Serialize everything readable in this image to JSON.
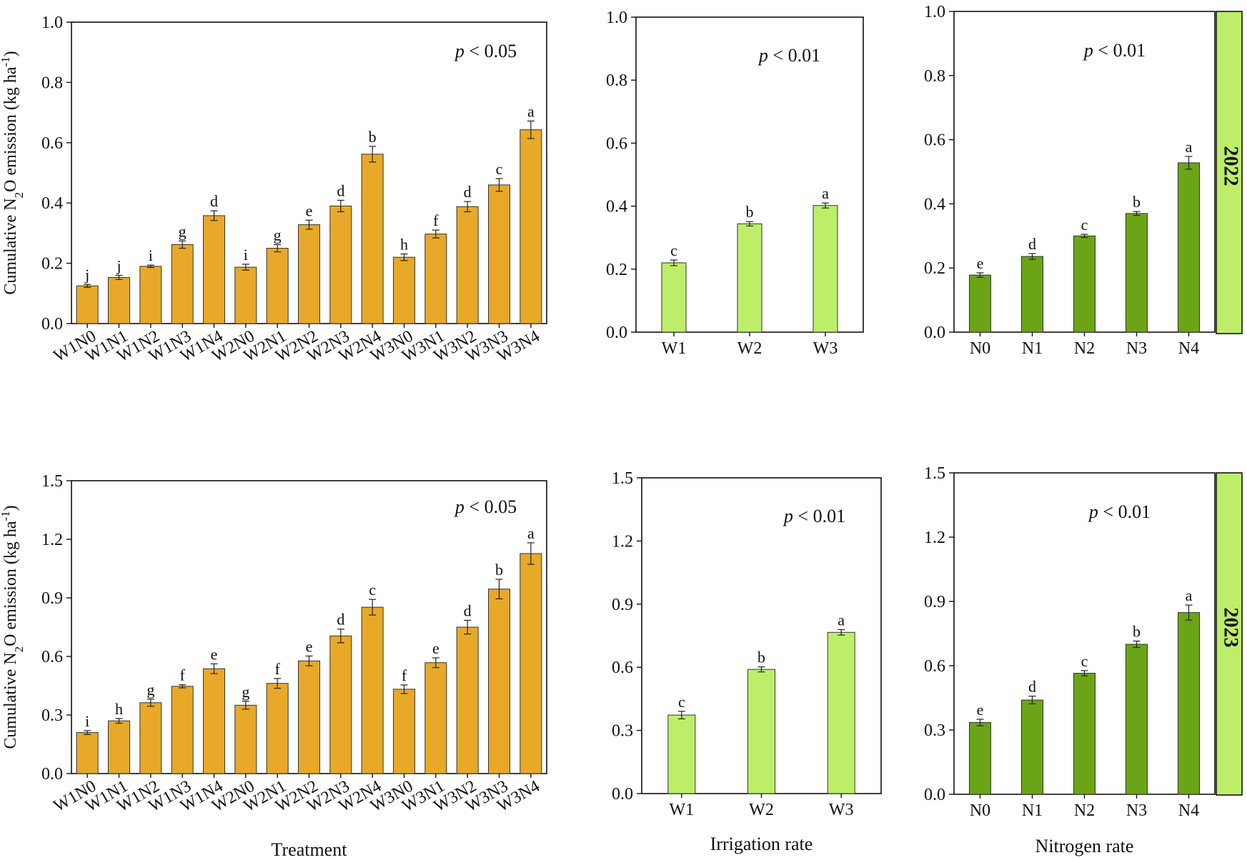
{
  "chart_data": [
    {
      "type": "bar",
      "year": "2022",
      "categories": [
        "W1N0",
        "W1N1",
        "W1N2",
        "W1N3",
        "W1N4",
        "W2N0",
        "W2N1",
        "W2N2",
        "W2N3",
        "W2N4",
        "W3N0",
        "W3N1",
        "W3N2",
        "W3N3",
        "W3N4"
      ],
      "values": [
        0.125,
        0.153,
        0.19,
        0.262,
        0.358,
        0.187,
        0.25,
        0.328,
        0.39,
        0.562,
        0.22,
        0.297,
        0.388,
        0.46,
        0.643
      ],
      "errors": [
        0.005,
        0.007,
        0.004,
        0.012,
        0.016,
        0.01,
        0.012,
        0.015,
        0.019,
        0.026,
        0.011,
        0.013,
        0.017,
        0.021,
        0.029
      ],
      "letters": [
        "j",
        "j",
        "i",
        "g",
        "d",
        "i",
        "g",
        "e",
        "d",
        "b",
        "h",
        "f",
        "d",
        "c",
        "a"
      ],
      "ylabel_parts": [
        "Cumulative N",
        "2",
        "O emission (kg ha",
        "-1",
        ")"
      ],
      "xlabel": "",
      "ylim": [
        0,
        1.0
      ],
      "ticks": [
        "0.0",
        "0.2",
        "0.4",
        "0.6",
        "0.8",
        "1.0"
      ],
      "p_label": "p",
      "p_value": " < 0.05",
      "color": "#E8A928"
    },
    {
      "type": "bar",
      "year": "2022",
      "categories": [
        "W1",
        "W2",
        "W3"
      ],
      "values": [
        0.22,
        0.344,
        0.402
      ],
      "errors": [
        0.009,
        0.007,
        0.008
      ],
      "letters": [
        "c",
        "b",
        "a"
      ],
      "xlabel": "",
      "ylim": [
        0,
        1.0
      ],
      "ticks": [
        "0.0",
        "0.2",
        "0.4",
        "0.6",
        "0.8",
        "1.0"
      ],
      "p_label": "p",
      "p_value": " < 0.01",
      "color": "#BDEE6A"
    },
    {
      "type": "bar",
      "year": "2022",
      "categories": [
        "N0",
        "N1",
        "N2",
        "N3",
        "N4"
      ],
      "values": [
        0.178,
        0.236,
        0.3,
        0.37,
        0.528
      ],
      "errors": [
        0.007,
        0.009,
        0.005,
        0.006,
        0.02
      ],
      "letters": [
        "e",
        "d",
        "c",
        "b",
        "a"
      ],
      "xlabel": "",
      "ylim": [
        0,
        1.0
      ],
      "ticks": [
        "0.0",
        "0.2",
        "0.4",
        "0.6",
        "0.8",
        "1.0"
      ],
      "p_label": "p",
      "p_value": " < 0.01",
      "color": "#6BA517",
      "year_label": "2022"
    },
    {
      "type": "bar",
      "year": "2023",
      "categories": [
        "W1N0",
        "W1N1",
        "W1N2",
        "W1N3",
        "W1N4",
        "W2N0",
        "W2N1",
        "W2N2",
        "W2N3",
        "W2N4",
        "W3N0",
        "W3N1",
        "W3N2",
        "W3N3",
        "W3N4"
      ],
      "values": [
        0.21,
        0.27,
        0.363,
        0.447,
        0.537,
        0.35,
        0.462,
        0.577,
        0.705,
        0.852,
        0.432,
        0.568,
        0.75,
        0.945,
        1.127
      ],
      "errors": [
        0.01,
        0.012,
        0.018,
        0.008,
        0.025,
        0.02,
        0.025,
        0.025,
        0.035,
        0.04,
        0.022,
        0.025,
        0.035,
        0.05,
        0.055
      ],
      "letters": [
        "i",
        "h",
        "g",
        "f",
        "e",
        "g",
        "f",
        "e",
        "d",
        "c",
        "f",
        "e",
        "d",
        "b",
        "a"
      ],
      "ylabel_parts": [
        "Cumulative N",
        "2",
        "O emission (kg ha",
        "-1",
        ")"
      ],
      "xlabel": "Treatment",
      "ylim": [
        0,
        1.5
      ],
      "ticks": [
        "0.0",
        "0.3",
        "0.6",
        "0.9",
        "1.2",
        "1.5"
      ],
      "p_label": "p",
      "p_value": " < 0.05",
      "color": "#E8A928"
    },
    {
      "type": "bar",
      "year": "2023",
      "categories": [
        "W1",
        "W2",
        "W3"
      ],
      "values": [
        0.373,
        0.59,
        0.766
      ],
      "errors": [
        0.018,
        0.012,
        0.013
      ],
      "letters": [
        "c",
        "b",
        "a"
      ],
      "xlabel": "Irrigation rate",
      "ylim": [
        0,
        1.5
      ],
      "ticks": [
        "0.0",
        "0.3",
        "0.6",
        "0.9",
        "1.2",
        "1.5"
      ],
      "p_label": "p",
      "p_value": " < 0.01",
      "color": "#BDEE6A"
    },
    {
      "type": "bar",
      "year": "2023",
      "categories": [
        "N0",
        "N1",
        "N2",
        "N3",
        "N4"
      ],
      "values": [
        0.335,
        0.44,
        0.565,
        0.7,
        0.848
      ],
      "errors": [
        0.015,
        0.018,
        0.012,
        0.015,
        0.035
      ],
      "letters": [
        "e",
        "d",
        "c",
        "b",
        "a"
      ],
      "xlabel": "Nitrogen rate",
      "ylim": [
        0,
        1.5
      ],
      "ticks": [
        "0.0",
        "0.3",
        "0.6",
        "0.9",
        "1.2",
        "1.5"
      ],
      "p_label": "p",
      "p_value": " < 0.01",
      "color": "#6BA517",
      "year_label": "2023"
    }
  ]
}
